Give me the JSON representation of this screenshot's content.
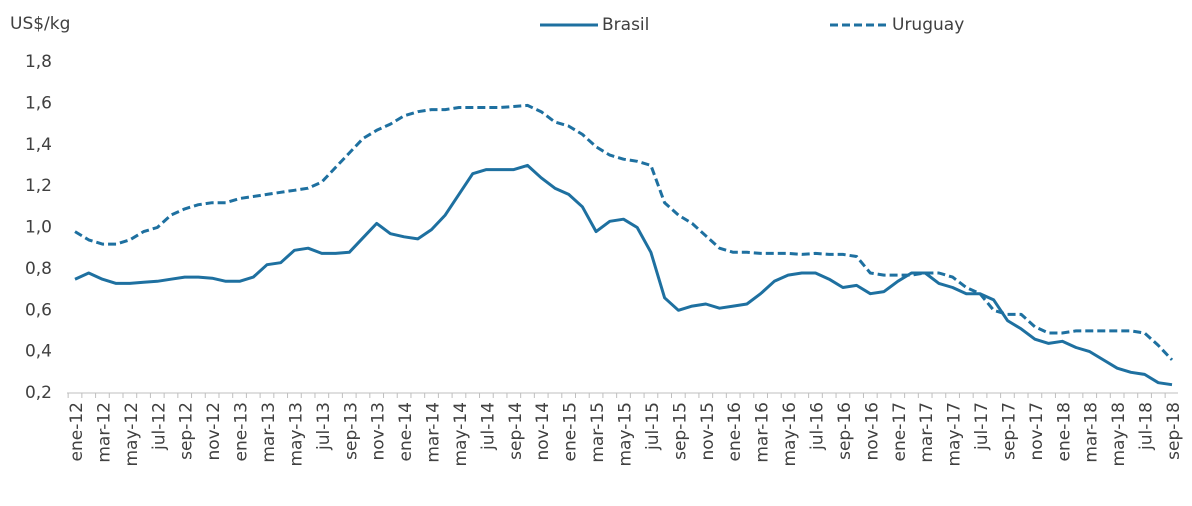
{
  "chart_data": {
    "type": "line",
    "y_label": "US$/kg",
    "categories": [
      "ene-12",
      null,
      "mar-12",
      null,
      "may-12",
      null,
      "jul-12",
      null,
      "sep-12",
      null,
      "nov-12",
      null,
      "ene-13",
      null,
      "mar-13",
      null,
      "may-13",
      null,
      "jul-13",
      null,
      "sep-13",
      null,
      "nov-13",
      null,
      "ene-14",
      null,
      "mar-14",
      null,
      "may-14",
      null,
      "jul-14",
      null,
      "sep-14",
      null,
      "nov-14",
      null,
      "ene-15",
      null,
      "mar-15",
      null,
      "may-15",
      null,
      "jul-15",
      null,
      "sep-15",
      null,
      "nov-15",
      null,
      "ene-16",
      null,
      "mar-16",
      null,
      "may-16",
      null,
      "jul-16",
      null,
      "sep-16",
      null,
      "nov-16",
      null,
      "ene-17",
      null,
      "mar-17",
      null,
      "may-17",
      null,
      "jul-17",
      null,
      "sep-17",
      null,
      "nov-17",
      null,
      "ene-18",
      null,
      "mar-18",
      null,
      "may-18",
      null,
      "jul-18",
      null,
      "sep-18"
    ],
    "series": [
      {
        "name": "Brasil",
        "color": "#1e70a0",
        "dash": false,
        "values": [
          0.75,
          0.78,
          0.75,
          0.73,
          0.73,
          0.735,
          0.74,
          0.75,
          0.76,
          0.76,
          0.755,
          0.74,
          0.74,
          0.76,
          0.82,
          0.83,
          0.89,
          0.9,
          0.875,
          0.875,
          0.88,
          0.95,
          1.02,
          0.97,
          0.955,
          0.945,
          0.99,
          1.06,
          1.16,
          1.26,
          1.28,
          1.28,
          1.28,
          1.3,
          1.24,
          1.19,
          1.16,
          1.1,
          0.98,
          1.03,
          1.04,
          1.0,
          0.88,
          0.66,
          0.6,
          0.62,
          0.63,
          0.61,
          0.62,
          0.63,
          0.68,
          0.74,
          0.77,
          0.78,
          0.78,
          0.75,
          0.71,
          0.72,
          0.68,
          0.69,
          0.74,
          0.78,
          0.78,
          0.73,
          0.71,
          0.68,
          0.68,
          0.65,
          0.55,
          0.51,
          0.46,
          0.44,
          0.45,
          0.42,
          0.4,
          0.36,
          0.32,
          0.3,
          0.29,
          0.25,
          0.24
        ]
      },
      {
        "name": "Uruguay",
        "color": "#1e70a0",
        "dash": true,
        "values": [
          0.98,
          0.94,
          0.92,
          0.92,
          0.94,
          0.98,
          1.0,
          1.06,
          1.09,
          1.11,
          1.12,
          1.12,
          1.14,
          1.15,
          1.16,
          1.17,
          1.18,
          1.19,
          1.22,
          1.29,
          1.36,
          1.43,
          1.47,
          1.5,
          1.54,
          1.56,
          1.57,
          1.57,
          1.58,
          1.58,
          1.58,
          1.58,
          1.585,
          1.59,
          1.56,
          1.51,
          1.49,
          1.45,
          1.39,
          1.35,
          1.33,
          1.32,
          1.3,
          1.12,
          1.06,
          1.02,
          0.96,
          0.9,
          0.88,
          0.88,
          0.875,
          0.875,
          0.875,
          0.87,
          0.875,
          0.87,
          0.87,
          0.86,
          0.78,
          0.77,
          0.77,
          0.77,
          0.78,
          0.78,
          0.76,
          0.71,
          0.68,
          0.6,
          0.58,
          0.58,
          0.52,
          0.49,
          0.49,
          0.5,
          0.5,
          0.5,
          0.5,
          0.5,
          0.49,
          0.43,
          0.36
        ]
      }
    ],
    "ylim": [
      0.2,
      1.8
    ],
    "yticks": [
      {
        "value": 0.2,
        "label": "0,2"
      },
      {
        "value": 0.4,
        "label": "0,4"
      },
      {
        "value": 0.6,
        "label": "0,6"
      },
      {
        "value": 0.8,
        "label": "0,8"
      },
      {
        "value": 1.0,
        "label": "1,0"
      },
      {
        "value": 1.2,
        "label": "1,2"
      },
      {
        "value": 1.4,
        "label": "1,4"
      },
      {
        "value": 1.6,
        "label": "1,6"
      },
      {
        "value": 1.8,
        "label": "1,8"
      }
    ],
    "grid": false,
    "legend": "top"
  }
}
